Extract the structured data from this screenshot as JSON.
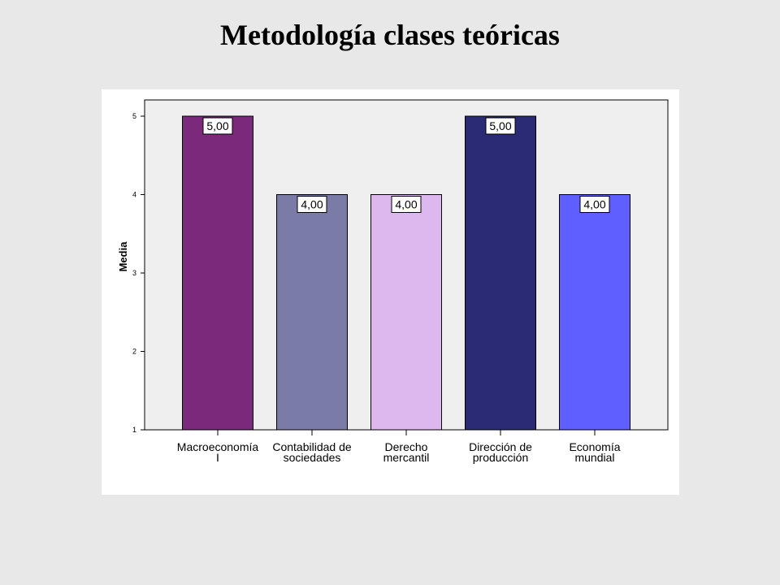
{
  "slide": {
    "title": "Metodología clases teóricas"
  },
  "chart_data": {
    "type": "bar",
    "title": "",
    "xlabel": "",
    "ylabel": "Media",
    "ylim": [
      1,
      5
    ],
    "yticks": [
      1,
      2,
      3,
      4,
      5
    ],
    "grid": false,
    "legend": "none",
    "plot_background": "#efefef",
    "categories": [
      [
        "Macroeconomía",
        "I"
      ],
      [
        "Contabilidad de",
        "sociedades"
      ],
      [
        "Derecho",
        "mercantil"
      ],
      [
        "Dirección de",
        "producción"
      ],
      [
        "Economía",
        "mundial"
      ]
    ],
    "values": [
      5.0,
      4.0,
      4.0,
      5.0,
      4.0
    ],
    "data_labels": [
      "5,00",
      "4,00",
      "4,00",
      "5,00",
      "4,00"
    ],
    "colors": [
      "#7b2a7b",
      "#7b7ba8",
      "#dcb8ee",
      "#2a2a75",
      "#5f5fff"
    ]
  }
}
